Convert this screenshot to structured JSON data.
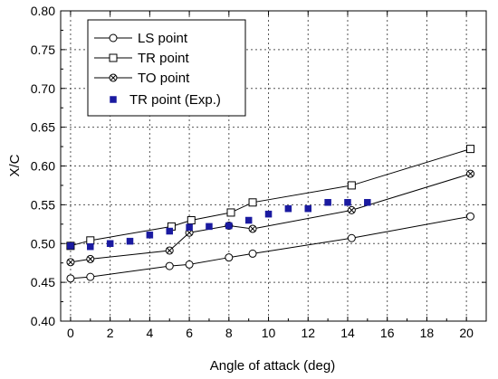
{
  "chart_data": {
    "type": "line",
    "title": "",
    "xlabel": "Angle of attack (deg)",
    "ylabel": "X/C",
    "xlim": [
      -0.5,
      21
    ],
    "ylim": [
      0.4,
      0.8
    ],
    "xticks": [
      0,
      2,
      4,
      6,
      8,
      10,
      12,
      14,
      16,
      18,
      20
    ],
    "yticks": [
      0.4,
      0.45,
      0.5,
      0.55,
      0.6,
      0.65,
      0.7,
      0.75,
      0.8
    ],
    "xtick_labels": [
      "0",
      "2",
      "4",
      "6",
      "8",
      "10",
      "12",
      "14",
      "16",
      "18",
      "20"
    ],
    "ytick_labels": [
      "0.40",
      "0.45",
      "0.50",
      "0.55",
      "0.60",
      "0.65",
      "0.70",
      "0.75",
      "0.80"
    ],
    "grid": true,
    "legend_position": "top-left",
    "series": [
      {
        "name": "LS point",
        "marker": "circle",
        "line": true,
        "color": "#000000",
        "x": [
          0,
          1,
          5,
          6,
          8,
          9.2,
          14.2,
          20.2
        ],
        "y": [
          0.455,
          0.457,
          0.471,
          0.473,
          0.482,
          0.487,
          0.507,
          0.535
        ]
      },
      {
        "name": "TR point",
        "marker": "square",
        "line": true,
        "color": "#000000",
        "x": [
          0,
          1,
          5.1,
          6.1,
          8.1,
          9.2,
          14.2,
          20.2
        ],
        "y": [
          0.497,
          0.504,
          0.522,
          0.53,
          0.54,
          0.553,
          0.575,
          0.622
        ]
      },
      {
        "name": "TO point",
        "marker": "circle-x",
        "line": true,
        "color": "#000000",
        "x": [
          0,
          1,
          5,
          6,
          8,
          9.2,
          14.2,
          20.2
        ],
        "y": [
          0.476,
          0.48,
          0.491,
          0.514,
          0.523,
          0.519,
          0.543,
          0.59
        ]
      },
      {
        "name": "TR point (Exp.)",
        "marker": "filled-square",
        "line": false,
        "color": "#1a1aa0",
        "x": [
          0,
          1,
          2,
          3,
          4,
          5,
          6,
          7,
          8,
          9,
          10,
          11,
          12,
          13,
          14,
          15
        ],
        "y": [
          0.497,
          0.496,
          0.5,
          0.503,
          0.511,
          0.516,
          0.521,
          0.522,
          0.523,
          0.53,
          0.538,
          0.545,
          0.545,
          0.553,
          0.553,
          0.553
        ]
      }
    ]
  }
}
